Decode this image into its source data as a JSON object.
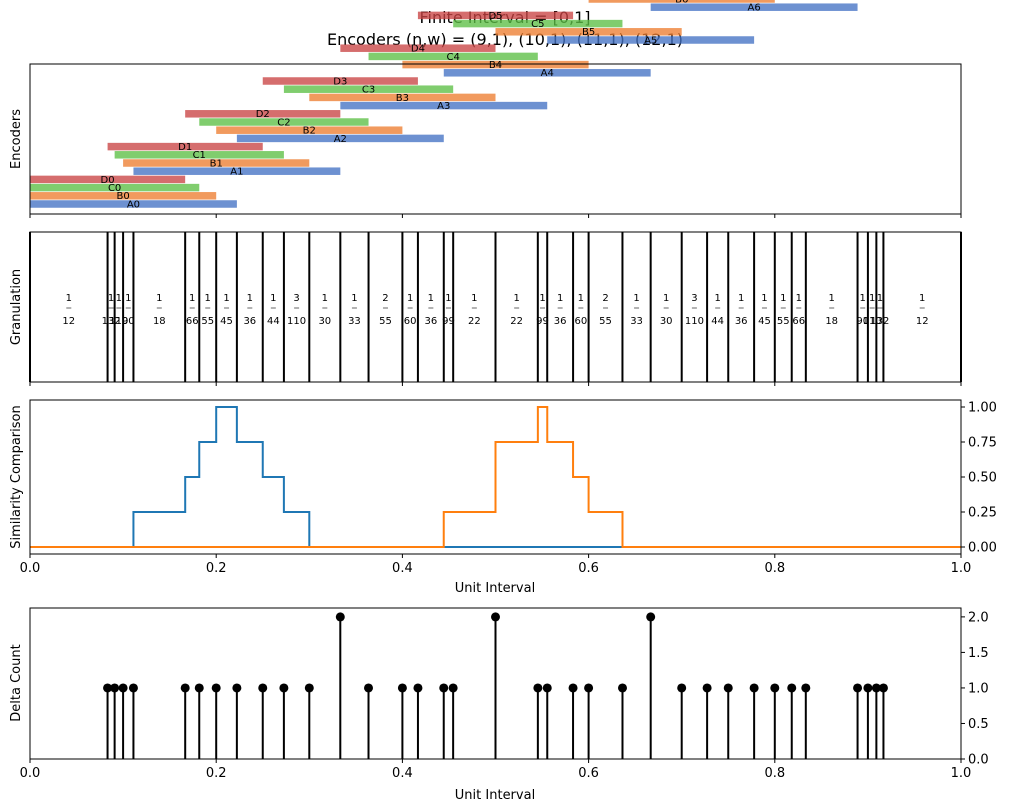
{
  "title_line1": "Finite Interval = [0,1]",
  "title_line2": "Encoders (n,w) = (9,1), (10,1), (11,1), (12,1)",
  "colors": {
    "A": "#4472c4",
    "B": "#ed7d31",
    "C": "#5cbf45",
    "D": "#c94444",
    "series1": "#1f77b4",
    "series2": "#ff7f0e",
    "stem": "#000000"
  },
  "chart_data": [
    {
      "type": "bar",
      "panel": "encoders",
      "ylabel": "Encoders",
      "xlim": [
        0,
        1
      ],
      "xticks": [
        0,
        0.2,
        0.4,
        0.6,
        0.8,
        1.0
      ],
      "show_tick_labels": false,
      "encoders": [
        {
          "prefix": "A",
          "n": 9,
          "w": 1
        },
        {
          "prefix": "B",
          "n": 10,
          "w": 1
        },
        {
          "prefix": "C",
          "n": 11,
          "w": 1
        },
        {
          "prefix": "D",
          "n": 12,
          "w": 1
        }
      ]
    },
    {
      "type": "bar",
      "panel": "granulation",
      "ylabel": "Granulation",
      "xlim": [
        0,
        1
      ],
      "boundaries": [
        "0",
        "1/12",
        "1/11",
        "1/10",
        "1/9",
        "1/6",
        "2/11",
        "1/5",
        "2/9",
        "1/4",
        "3/11",
        "3/10",
        "1/3",
        "4/11",
        "2/5",
        "5/12",
        "4/9",
        "5/11",
        "1/2",
        "6/11",
        "5/9",
        "7/12",
        "3/5",
        "7/11",
        "2/3",
        "7/10",
        "8/11",
        "3/4",
        "7/9",
        "4/5",
        "9/11",
        "5/6",
        "8/9",
        "9/10",
        "10/11",
        "11/12",
        "1"
      ],
      "widths": [
        "1/12",
        "1/132",
        "1/110",
        "1/90",
        "1/18",
        "1/66",
        "1/55",
        "1/45",
        "1/36",
        "1/44",
        "3/110",
        "1/30",
        "1/33",
        "2/55",
        "1/60",
        "1/36",
        "1/99",
        "1/22",
        "1/22",
        "1/99",
        "1/36",
        "1/60",
        "2/55",
        "1/33",
        "1/30",
        "3/110",
        "1/44",
        "1/36",
        "1/45",
        "1/55",
        "1/66",
        "1/18",
        "1/90",
        "1/110",
        "1/132",
        "1/12"
      ]
    },
    {
      "type": "line",
      "panel": "similarity",
      "ylabel": "Similarity Comparison",
      "xlabel": "Unit Interval",
      "xlim": [
        0,
        1
      ],
      "ylim": [
        -0.05,
        1.05
      ],
      "xticks": [
        "0.0",
        "0.2",
        "0.4",
        "0.6",
        "0.8",
        "1.0"
      ],
      "yticks": [
        "0.00",
        "0.25",
        "0.50",
        "0.75",
        "1.00"
      ],
      "series": [
        {
          "x": [
            0,
            0.1111,
            0.1111,
            0.1667,
            0.1667,
            0.1818,
            0.1818,
            0.2,
            0.2,
            0.2222,
            0.2222,
            0.25,
            0.25,
            0.2727,
            0.2727,
            0.3,
            0.3,
            1
          ],
          "y": [
            0,
            0,
            0.25,
            0.25,
            0.5,
            0.5,
            0.75,
            0.75,
            1,
            1,
            0.75,
            0.75,
            0.5,
            0.5,
            0.25,
            0.25,
            0,
            0
          ]
        },
        {
          "x": [
            0,
            0.4444,
            0.4444,
            0.5,
            0.5,
            0.5455,
            0.5455,
            0.5556,
            0.5556,
            0.5833,
            0.5833,
            0.6,
            0.6,
            0.6364,
            0.6364,
            1
          ],
          "y": [
            0,
            0,
            0.25,
            0.25,
            0.75,
            0.75,
            1,
            1,
            0.75,
            0.75,
            0.5,
            0.5,
            0.25,
            0.25,
            0,
            0
          ]
        }
      ]
    },
    {
      "type": "scatter",
      "panel": "delta",
      "ylabel": "Delta Count",
      "xlabel": "Unit Interval",
      "xlim": [
        0,
        1
      ],
      "ylim": [
        0,
        2.125
      ],
      "xticks": [
        "0.0",
        "0.2",
        "0.4",
        "0.6",
        "0.8",
        "1.0"
      ],
      "yticks": [
        "0.0",
        "0.5",
        "1.0",
        "1.5",
        "2.0"
      ],
      "x": [
        0.0833,
        0.0909,
        0.1,
        0.1111,
        0.1667,
        0.1818,
        0.2,
        0.2222,
        0.25,
        0.2727,
        0.3,
        0.3333,
        0.3636,
        0.4,
        0.4167,
        0.4444,
        0.4545,
        0.5,
        0.5455,
        0.5556,
        0.5833,
        0.6,
        0.6364,
        0.6667,
        0.7,
        0.7273,
        0.75,
        0.7778,
        0.8,
        0.8182,
        0.8333,
        0.8889,
        0.9,
        0.9091,
        0.9167
      ],
      "y": [
        1,
        1,
        1,
        1,
        1,
        1,
        1,
        1,
        1,
        1,
        1,
        2,
        1,
        1,
        1,
        1,
        1,
        2,
        1,
        1,
        1,
        1,
        1,
        2,
        1,
        1,
        1,
        1,
        1,
        1,
        1,
        1,
        1,
        1,
        1
      ]
    }
  ]
}
